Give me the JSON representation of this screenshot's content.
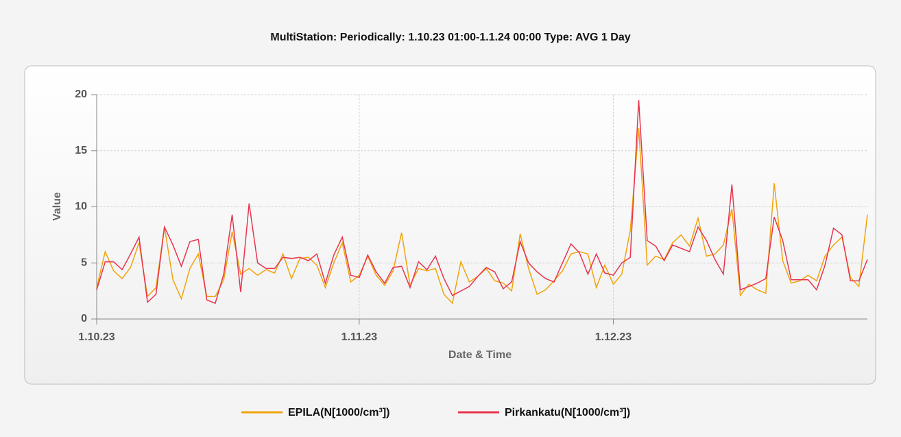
{
  "chart_data": {
    "type": "line",
    "title": "MultiStation:  Periodically: 1.10.23 01:00-1.1.24 00:00  Type: AVG 1 Day",
    "xlabel": "Date & Time",
    "ylabel": "Value",
    "x": [
      "2023-10-01",
      "2023-10-02",
      "2023-10-03",
      "2023-10-04",
      "2023-10-05",
      "2023-10-06",
      "2023-10-07",
      "2023-10-08",
      "2023-10-09",
      "2023-10-10",
      "2023-10-11",
      "2023-10-12",
      "2023-10-13",
      "2023-10-14",
      "2023-10-15",
      "2023-10-16",
      "2023-10-17",
      "2023-10-18",
      "2023-10-19",
      "2023-10-20",
      "2023-10-21",
      "2023-10-22",
      "2023-10-23",
      "2023-10-24",
      "2023-10-25",
      "2023-10-26",
      "2023-10-27",
      "2023-10-28",
      "2023-10-29",
      "2023-10-30",
      "2023-10-31",
      "2023-11-01",
      "2023-11-02",
      "2023-11-03",
      "2023-11-04",
      "2023-11-05",
      "2023-11-06",
      "2023-11-07",
      "2023-11-08",
      "2023-11-09",
      "2023-11-10",
      "2023-11-11",
      "2023-11-12",
      "2023-11-13",
      "2023-11-14",
      "2023-11-15",
      "2023-11-16",
      "2023-11-17",
      "2023-11-18",
      "2023-11-19",
      "2023-11-20",
      "2023-11-21",
      "2023-11-22",
      "2023-11-23",
      "2023-11-24",
      "2023-11-25",
      "2023-11-26",
      "2023-11-27",
      "2023-11-28",
      "2023-11-29",
      "2023-11-30",
      "2023-12-01",
      "2023-12-02",
      "2023-12-03",
      "2023-12-04",
      "2023-12-05",
      "2023-12-06",
      "2023-12-07",
      "2023-12-08",
      "2023-12-09",
      "2023-12-10",
      "2023-12-11",
      "2023-12-12",
      "2023-12-13",
      "2023-12-14",
      "2023-12-15",
      "2023-12-16",
      "2023-12-17",
      "2023-12-18",
      "2023-12-19",
      "2023-12-20",
      "2023-12-21",
      "2023-12-22",
      "2023-12-23",
      "2023-12-24",
      "2023-12-25",
      "2023-12-26",
      "2023-12-27",
      "2023-12-28",
      "2023-12-29",
      "2023-12-30",
      "2023-12-31"
    ],
    "series": [
      {
        "name": "EPILA(N[1000/cm³])",
        "color": "#f0a30a",
        "values": [
          2.8,
          6.0,
          4.3,
          3.6,
          4.6,
          6.8,
          2.0,
          2.8,
          8.2,
          3.5,
          1.8,
          4.5,
          5.8,
          2.0,
          2.0,
          3.5,
          7.8,
          4.0,
          4.5,
          3.9,
          4.4,
          4.1,
          5.8,
          3.6,
          5.4,
          5.5,
          4.8,
          2.8,
          5.0,
          6.8,
          3.3,
          3.9,
          5.6,
          3.9,
          3.0,
          4.3,
          7.7,
          3.0,
          4.5,
          4.3,
          4.5,
          2.2,
          1.4,
          5.1,
          3.3,
          3.8,
          4.5,
          3.4,
          3.2,
          2.5,
          7.6,
          4.5,
          2.2,
          2.6,
          3.4,
          4.3,
          5.8,
          6.0,
          5.8,
          2.8,
          4.8,
          3.1,
          4.0,
          7.9,
          17.0,
          4.8,
          5.6,
          5.3,
          6.8,
          7.5,
          6.5,
          9.0,
          5.6,
          5.8,
          6.6,
          9.8,
          2.1,
          3.1,
          2.6,
          2.3,
          12.1,
          5.2,
          3.2,
          3.4,
          3.9,
          3.4,
          5.6,
          6.6,
          7.3,
          3.7,
          2.9,
          9.3
        ]
      },
      {
        "name": "Pirkankatu(N[1000/cm³])",
        "color": "#e8344e",
        "values": [
          2.6,
          5.1,
          5.1,
          4.4,
          5.8,
          7.3,
          1.5,
          2.2,
          8.2,
          6.6,
          4.7,
          6.9,
          7.1,
          1.7,
          1.4,
          4.0,
          9.3,
          2.4,
          10.3,
          5.0,
          4.5,
          4.5,
          5.5,
          5.4,
          5.5,
          5.2,
          5.8,
          3.2,
          5.7,
          7.3,
          3.9,
          3.7,
          5.7,
          4.2,
          3.2,
          4.6,
          4.7,
          2.8,
          5.1,
          4.4,
          5.6,
          3.6,
          2.1,
          2.5,
          2.9,
          3.8,
          4.6,
          4.2,
          2.7,
          3.3,
          6.9,
          5.0,
          4.2,
          3.6,
          3.3,
          5.0,
          6.7,
          5.9,
          4.0,
          5.8,
          4.1,
          3.9,
          5.0,
          5.5,
          19.5,
          7.0,
          6.5,
          5.2,
          6.6,
          6.3,
          6.0,
          8.2,
          7.0,
          5.3,
          4.0,
          12.0,
          2.6,
          2.9,
          3.2,
          3.6,
          9.1,
          7.0,
          3.5,
          3.5,
          3.5,
          2.6,
          4.8,
          8.1,
          7.5,
          3.4,
          3.4,
          5.3
        ]
      }
    ],
    "xlim": [
      "2023-10-01",
      "2023-12-31"
    ],
    "xticks": [
      {
        "value": "2023-10-01",
        "label": "1.10.23"
      },
      {
        "value": "2023-11-01",
        "label": "1.11.23"
      },
      {
        "value": "2023-12-01",
        "label": "1.12.23"
      }
    ],
    "ylim": [
      0,
      20
    ],
    "yticks": [
      0,
      5,
      10,
      15,
      20
    ],
    "grid": true
  }
}
